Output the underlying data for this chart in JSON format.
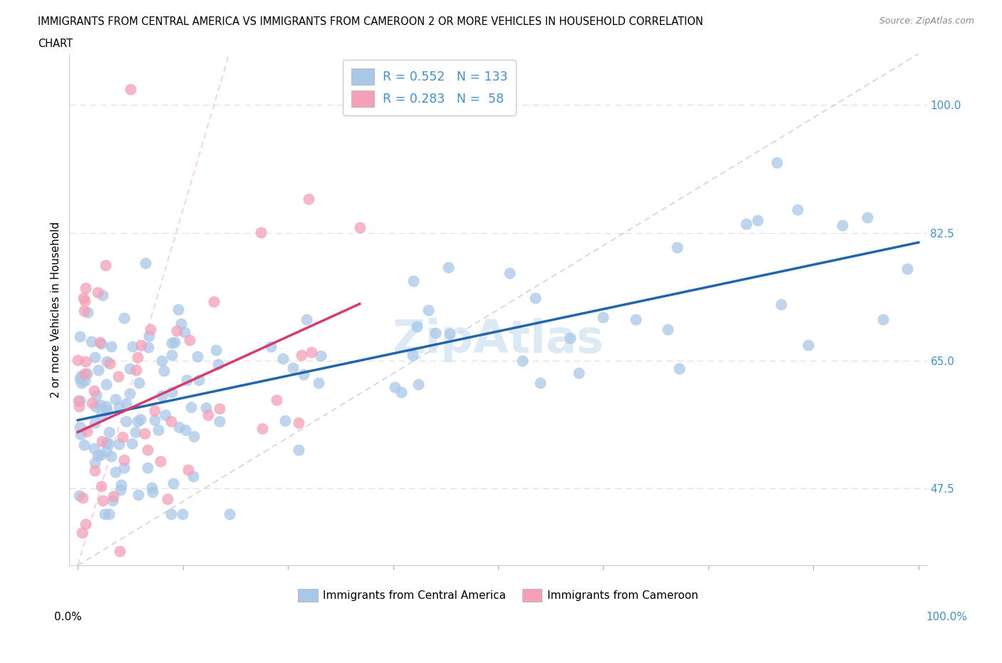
{
  "title_line1": "IMMIGRANTS FROM CENTRAL AMERICA VS IMMIGRANTS FROM CAMEROON 2 OR MORE VEHICLES IN HOUSEHOLD CORRELATION",
  "title_line2": "CHART",
  "source": "Source: ZipAtlas.com",
  "ylabel": "2 or more Vehicles in Household",
  "xmin": 0.0,
  "xmax": 100.0,
  "ymin": 37.0,
  "ymax": 107.0,
  "yticks": [
    47.5,
    65.0,
    82.5,
    100.0
  ],
  "blue_color": "#a8c8e8",
  "pink_color": "#f4a0b8",
  "blue_line_color": "#2166ac",
  "pink_line_color": "#d63a6e",
  "legend_R_blue": "0.552",
  "legend_N_blue": "133",
  "legend_R_pink": "0.283",
  "legend_N_pink": "58",
  "watermark": "ZipAtlas",
  "right_tick_color": "#4090d0",
  "right_100_color": "#4090d0"
}
